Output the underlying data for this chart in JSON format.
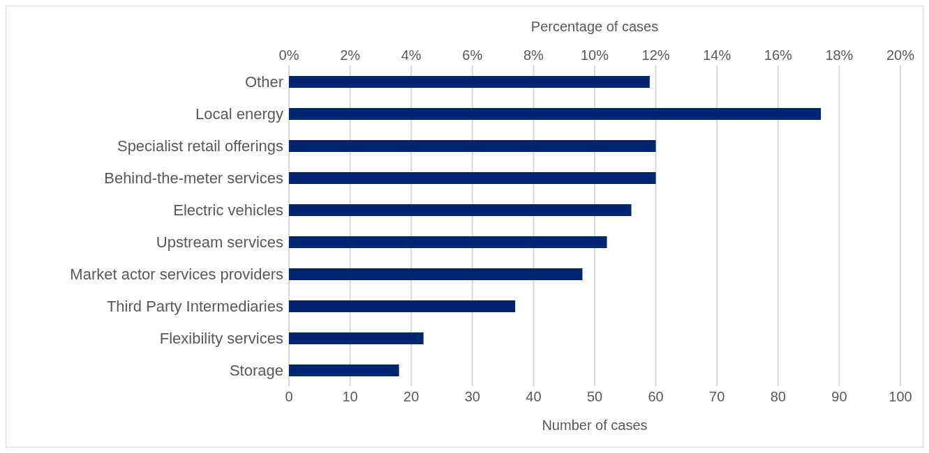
{
  "chart_data": {
    "type": "bar",
    "orientation": "horizontal",
    "xlabel": "Number of cases",
    "x2label": "Percentage of cases",
    "categories": [
      "Other",
      "Local energy",
      "Specialist retail offerings",
      "Behind-the-meter services",
      "Electric vehicles",
      "Upstream services",
      "Market actor services providers",
      "Third Party Intermediaries",
      "Flexibility services",
      "Storage"
    ],
    "values": [
      59,
      87,
      60,
      60,
      56,
      52,
      48,
      37,
      22,
      18
    ],
    "color": "#002672",
    "xlim": [
      0,
      100
    ],
    "xticks": [
      0,
      10,
      20,
      30,
      40,
      50,
      60,
      70,
      80,
      90,
      100
    ],
    "x2lim": [
      0,
      20
    ],
    "x2ticks": [
      {
        "value": 0,
        "label": "0%"
      },
      {
        "value": 2,
        "label": "2%"
      },
      {
        "value": 4,
        "label": "4%"
      },
      {
        "value": 6,
        "label": "6%"
      },
      {
        "value": 8,
        "label": "8%"
      },
      {
        "value": 10,
        "label": "10%"
      },
      {
        "value": 12,
        "label": "12%"
      },
      {
        "value": 14,
        "label": "14%"
      },
      {
        "value": 16,
        "label": "16%"
      },
      {
        "value": 18,
        "label": "18%"
      },
      {
        "value": 20,
        "label": "20%"
      }
    ],
    "grid": "x",
    "legend": false
  }
}
